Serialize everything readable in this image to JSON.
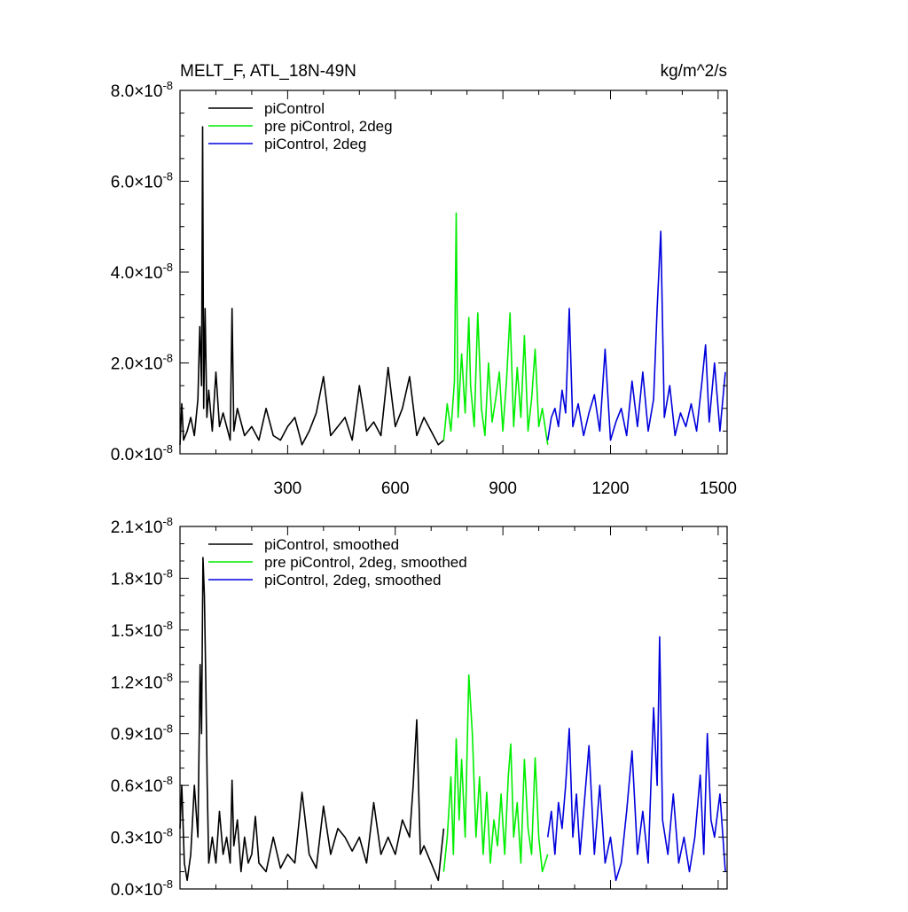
{
  "figure": {
    "title_left": "MELT_F, ATL_18N-49N",
    "title_right": "kg/m^2/s"
  },
  "colors": {
    "piControl": "#000000",
    "pre_piControl_2deg": "#00ee00",
    "piControl_2deg": "#0000dd"
  },
  "chart_data": [
    {
      "type": "line",
      "panel": "top",
      "title": "MELT_F, ATL_18N-49N",
      "units": "kg/m^2/s",
      "xlim": [
        0,
        1525
      ],
      "ylim": [
        0,
        8e-08
      ],
      "x_ticks": [
        300,
        600,
        900,
        1200,
        1500
      ],
      "x_tick_labels": [
        "300",
        "600",
        "900",
        "1200",
        "1500"
      ],
      "y_ticks": [
        0,
        2e-08,
        4e-08,
        6e-08,
        8e-08
      ],
      "y_tick_labels": [
        {
          "mantissa": "0.0",
          "exponent": "-8"
        },
        {
          "mantissa": "2.0",
          "exponent": "-8"
        },
        {
          "mantissa": "4.0",
          "exponent": "-8"
        },
        {
          "mantissa": "6.0",
          "exponent": "-8"
        },
        {
          "mantissa": "8.0",
          "exponent": "-8"
        }
      ],
      "legend_position": "top-left",
      "grid": false,
      "series": [
        {
          "name": "piControl",
          "color": "#000000",
          "x": [
            0,
            5,
            10,
            20,
            30,
            40,
            50,
            55,
            60,
            63,
            66,
            70,
            75,
            80,
            90,
            100,
            110,
            120,
            140,
            145,
            150,
            160,
            180,
            200,
            220,
            240,
            260,
            280,
            300,
            320,
            340,
            360,
            380,
            400,
            420,
            440,
            460,
            480,
            500,
            520,
            540,
            560,
            580,
            600,
            620,
            640,
            660,
            680,
            700,
            720,
            735
          ],
          "y": [
            2e-09,
            1.1e-08,
            3e-09,
            5e-09,
            8e-09,
            4e-09,
            1.2e-08,
            2.8e-08,
            1.5e-08,
            7.2e-08,
            1e-08,
            3.2e-08,
            8e-09,
            1.4e-08,
            5e-09,
            1.8e-08,
            6e-09,
            9e-09,
            3e-09,
            3.2e-08,
            5e-09,
            1e-08,
            4e-09,
            6e-09,
            3e-09,
            1e-08,
            4e-09,
            3e-09,
            6e-09,
            8e-09,
            2e-09,
            5e-09,
            9e-09,
            1.7e-08,
            4e-09,
            6e-09,
            8e-09,
            3e-09,
            1.5e-08,
            5e-09,
            7e-09,
            4e-09,
            1.9e-08,
            6e-09,
            1e-08,
            1.7e-08,
            4e-09,
            8e-09,
            5e-09,
            2e-09,
            3e-09
          ]
        },
        {
          "name": "pre piControl, 2deg",
          "color": "#00ee00",
          "x": [
            735,
            745,
            755,
            765,
            770,
            775,
            785,
            795,
            805,
            810,
            820,
            830,
            840,
            850,
            860,
            870,
            880,
            890,
            900,
            910,
            920,
            930,
            940,
            950,
            960,
            970,
            980,
            990,
            1000,
            1010,
            1025
          ],
          "y": [
            3e-09,
            1.1e-08,
            5e-09,
            1.6e-08,
            5.3e-08,
            8e-09,
            2.2e-08,
            9e-09,
            3e-08,
            1.5e-08,
            6e-09,
            3.1e-08,
            1e-08,
            4e-09,
            2e-08,
            7e-09,
            1.2e-08,
            1.8e-08,
            5e-09,
            1.6e-08,
            3.1e-08,
            6e-09,
            1.9e-08,
            8e-09,
            2.6e-08,
            5e-09,
            1.2e-08,
            2.3e-08,
            6e-09,
            1e-08,
            2e-09
          ]
        },
        {
          "name": "piControl, 2deg",
          "color": "#0000dd",
          "x": [
            1025,
            1035,
            1045,
            1055,
            1065,
            1075,
            1085,
            1095,
            1110,
            1125,
            1140,
            1155,
            1170,
            1185,
            1200,
            1215,
            1230,
            1245,
            1260,
            1275,
            1290,
            1305,
            1320,
            1330,
            1340,
            1350,
            1365,
            1380,
            1395,
            1410,
            1425,
            1440,
            1455,
            1465,
            1475,
            1490,
            1505,
            1520
          ],
          "y": [
            3e-09,
            8e-09,
            1e-08,
            6e-09,
            1.4e-08,
            9e-09,
            3.2e-08,
            6e-09,
            1.1e-08,
            4e-09,
            9e-09,
            1.3e-08,
            5e-09,
            2.3e-08,
            3e-09,
            7e-09,
            1e-08,
            4e-09,
            1.6e-08,
            6e-09,
            1.8e-08,
            5e-09,
            1.2e-08,
            3.2e-08,
            4.9e-08,
            8e-09,
            1.5e-08,
            4e-09,
            9e-09,
            6e-09,
            1.1e-08,
            5e-09,
            1.6e-08,
            2.4e-08,
            7e-09,
            2e-08,
            5e-09,
            1.8e-08
          ]
        }
      ]
    },
    {
      "type": "line",
      "panel": "bottom",
      "xlim": [
        0,
        1525
      ],
      "ylim": [
        0,
        2.1e-08
      ],
      "x_ticks": [
        300,
        600,
        900,
        1200,
        1500
      ],
      "x_tick_labels": [],
      "y_ticks": [
        0,
        3e-09,
        6e-09,
        9e-09,
        1.2e-08,
        1.5e-08,
        1.8e-08,
        2.1e-08
      ],
      "y_tick_labels": [
        {
          "mantissa": "0.0",
          "exponent": "-8"
        },
        {
          "mantissa": "0.3",
          "exponent": "-8"
        },
        {
          "mantissa": "0.6",
          "exponent": "-8"
        },
        {
          "mantissa": "0.9",
          "exponent": "-8"
        },
        {
          "mantissa": "1.2",
          "exponent": "-8"
        },
        {
          "mantissa": "1.5",
          "exponent": "-8"
        },
        {
          "mantissa": "1.8",
          "exponent": "-8"
        },
        {
          "mantissa": "2.1",
          "exponent": "-8"
        }
      ],
      "legend_position": "top-left",
      "grid": false,
      "series": [
        {
          "name": "piControl, smoothed",
          "color": "#000000",
          "x": [
            0,
            5,
            12,
            20,
            30,
            40,
            50,
            56,
            60,
            64,
            68,
            72,
            76,
            80,
            90,
            100,
            110,
            120,
            130,
            140,
            145,
            150,
            160,
            170,
            180,
            190,
            200,
            210,
            220,
            240,
            260,
            280,
            300,
            320,
            340,
            360,
            380,
            400,
            420,
            440,
            460,
            480,
            500,
            520,
            540,
            560,
            580,
            600,
            620,
            640,
            650,
            660,
            670,
            680,
            700,
            720,
            735
          ],
          "y": [
            3.5e-09,
            6e-09,
            1.5e-09,
            5e-10,
            2e-09,
            6e-09,
            3e-09,
            1.3e-08,
            9e-09,
            1.92e-08,
            1.7e-08,
            1.2e-08,
            6e-09,
            1.5e-09,
            3e-09,
            1.5e-09,
            4.5e-09,
            2e-09,
            3e-09,
            1.5e-09,
            6.3e-09,
            2.5e-09,
            4e-09,
            1e-09,
            3e-09,
            1.5e-09,
            2e-09,
            4.2e-09,
            1.5e-09,
            1e-09,
            3e-09,
            1.2e-09,
            2e-09,
            1.5e-09,
            5.6e-09,
            2e-09,
            1.2e-09,
            4.8e-09,
            2e-09,
            3.5e-09,
            3e-09,
            2.2e-09,
            3e-09,
            1.5e-09,
            5e-09,
            2e-09,
            3e-09,
            2e-09,
            4e-09,
            3e-09,
            6e-09,
            9.8e-09,
            2e-09,
            2.5e-09,
            1.5e-09,
            5e-10,
            3.5e-09
          ]
        },
        {
          "name": "pre piControl, 2deg, smoothed",
          "color": "#00ee00",
          "x": [
            735,
            745,
            755,
            762,
            770,
            778,
            785,
            795,
            805,
            815,
            825,
            835,
            845,
            855,
            865,
            875,
            885,
            895,
            905,
            915,
            922,
            930,
            940,
            950,
            960,
            970,
            980,
            990,
            1000,
            1010,
            1025
          ],
          "y": [
            1e-09,
            3e-09,
            6.5e-09,
            2e-09,
            8.7e-09,
            4e-09,
            7.5e-09,
            3e-09,
            1.24e-08,
            9e-09,
            3e-09,
            6.5e-09,
            2e-09,
            5.6e-09,
            1.5e-09,
            4e-09,
            2.5e-09,
            5.5e-09,
            2e-09,
            6.5e-09,
            8.4e-09,
            3e-09,
            5e-09,
            1.5e-09,
            7.5e-09,
            3.5e-09,
            2e-09,
            7.6e-09,
            3e-09,
            1e-09,
            2e-09
          ]
        },
        {
          "name": "piControl, 2deg, smoothed",
          "color": "#0000dd",
          "x": [
            1025,
            1035,
            1045,
            1055,
            1065,
            1075,
            1085,
            1095,
            1105,
            1115,
            1125,
            1140,
            1155,
            1170,
            1185,
            1200,
            1215,
            1230,
            1245,
            1260,
            1275,
            1290,
            1305,
            1320,
            1330,
            1337,
            1345,
            1360,
            1375,
            1390,
            1405,
            1420,
            1435,
            1450,
            1460,
            1470,
            1480,
            1490,
            1505,
            1520
          ],
          "y": [
            3e-09,
            4.5e-09,
            2e-09,
            5e-09,
            3.5e-09,
            6e-09,
            9.3e-09,
            3e-09,
            5.5e-09,
            2e-09,
            4.5e-09,
            8.3e-09,
            2e-09,
            6e-09,
            1.5e-09,
            3e-09,
            5e-10,
            1.5e-09,
            4.5e-09,
            8e-09,
            2e-09,
            4.5e-09,
            1.5e-09,
            1.05e-08,
            6e-09,
            1.46e-08,
            4e-09,
            2e-09,
            5.5e-09,
            1.5e-09,
            3e-09,
            1e-09,
            3e-09,
            6.6e-09,
            2e-09,
            9e-09,
            4e-09,
            3e-09,
            5.5e-09,
            1e-09
          ]
        }
      ]
    }
  ]
}
